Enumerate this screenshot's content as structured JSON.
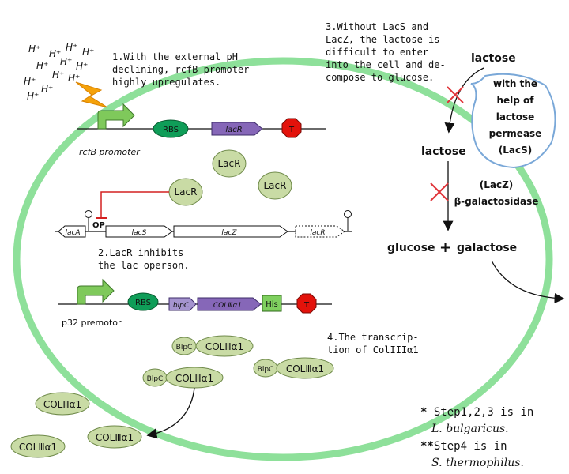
{
  "colors": {
    "cell_membrane": "#8ee09a",
    "protein_fill": "#c9dba5",
    "protein_stroke": "#6f8a4a",
    "rbs_fill": "#0f9d58",
    "lacr_gene_fill": "#8667b8",
    "his_fill": "#7fd05f",
    "terminator_fill": "#e3120b",
    "promoter_arrow": "#7fc95b",
    "inhibition_line": "#d42020",
    "bolt": "#f5a20a",
    "block_x": "#e0353a",
    "bubble_stroke": "#7aa8d8"
  },
  "ions": [
    "H⁺",
    "H⁺",
    "H⁺",
    "H⁺",
    "H⁺",
    "H⁺",
    "H⁺",
    "H⁺",
    "H⁺",
    "H⁺",
    "H⁺",
    "H⁺"
  ],
  "steps": {
    "step1": [
      "1.With the external pH",
      "declining, rcfB promoter",
      "highly upregulates."
    ],
    "step2": [
      "2.LacR inhibits",
      "the lac operson."
    ],
    "step3": [
      "3.Without LacS and",
      "LacZ, the lactose is",
      "difficult to enter",
      "into the cell and de-",
      "compose to glucose."
    ],
    "step4": [
      "4.The transcrip-",
      "tion of ColIIIα1"
    ]
  },
  "construct1": {
    "promoter": "rcfB promoter",
    "rbs": "RBS",
    "gene": "lacR",
    "terminator": "T"
  },
  "lacr_proteins": [
    "LacR",
    "LacR",
    "LacR"
  ],
  "operon": {
    "op": "OP",
    "genes": [
      "lacA",
      "lacS",
      "lacZ",
      "lacR"
    ]
  },
  "construct2": {
    "promoter": "p32 premotor",
    "rbs": "RBS",
    "signal": "blpC",
    "gene": "COLⅢα1",
    "tag": "His",
    "terminator": "T"
  },
  "fusion_proteins": [
    {
      "signal": "BlpC",
      "protein": "COLⅢα1"
    },
    {
      "signal": "BlpC",
      "protein": "COLⅢα1"
    },
    {
      "signal": "BlpC",
      "protein": "COLⅢα1"
    }
  ],
  "secreted_proteins": [
    "COLⅢα1",
    "COLⅢα1",
    "COLⅢα1"
  ],
  "pathway": {
    "lactose_out": "lactose",
    "permease_note": [
      "with the",
      "help of",
      "lactose",
      "permease",
      "(LacS)"
    ],
    "lactose_in": "lactose",
    "enzyme": [
      "(LacZ)",
      "β-galactosidase"
    ],
    "glucose": "glucose",
    "plus": "+",
    "galactose": "galactose"
  },
  "notes": {
    "note1_marker": "*",
    "note1_text": " Step1,2,3 is in",
    "note1_species": "L. bulgaricus.",
    "note2_marker": "**",
    "note2_text": "Step4 is in",
    "note2_species": "S. thermophilus."
  }
}
